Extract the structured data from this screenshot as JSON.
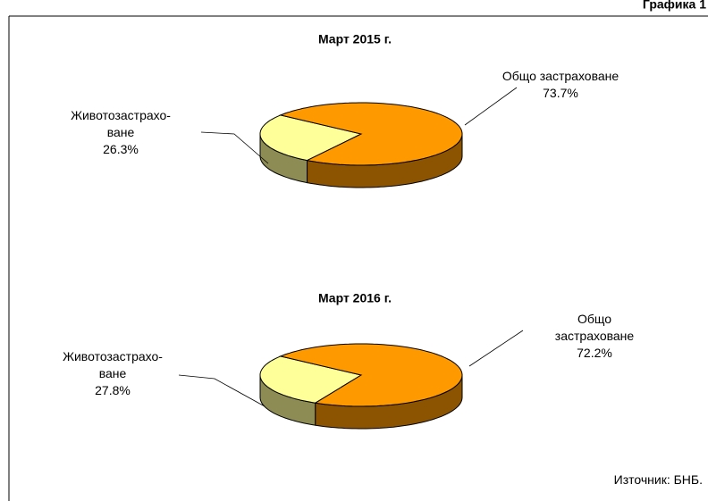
{
  "header": "Графика 1",
  "source": "Източник: БНБ.",
  "chart_data": [
    {
      "type": "pie3d",
      "title": "Март 2015 г.",
      "categories": [
        "Животозастрахо-\nване",
        "Общо застраховане"
      ],
      "values": [
        26.3,
        73.7
      ],
      "value_labels": [
        "26.3%",
        "73.7%"
      ],
      "colors": [
        "#ffff99",
        "#ff9900"
      ]
    },
    {
      "type": "pie3d",
      "title": "Март 2016 г.",
      "categories": [
        "Животозастрахо-\nване",
        "Общо застраховане"
      ],
      "values": [
        27.8,
        72.2
      ],
      "value_labels": [
        "27.8%",
        "72.2%"
      ],
      "colors": [
        "#ffff99",
        "#ff9900"
      ]
    }
  ]
}
